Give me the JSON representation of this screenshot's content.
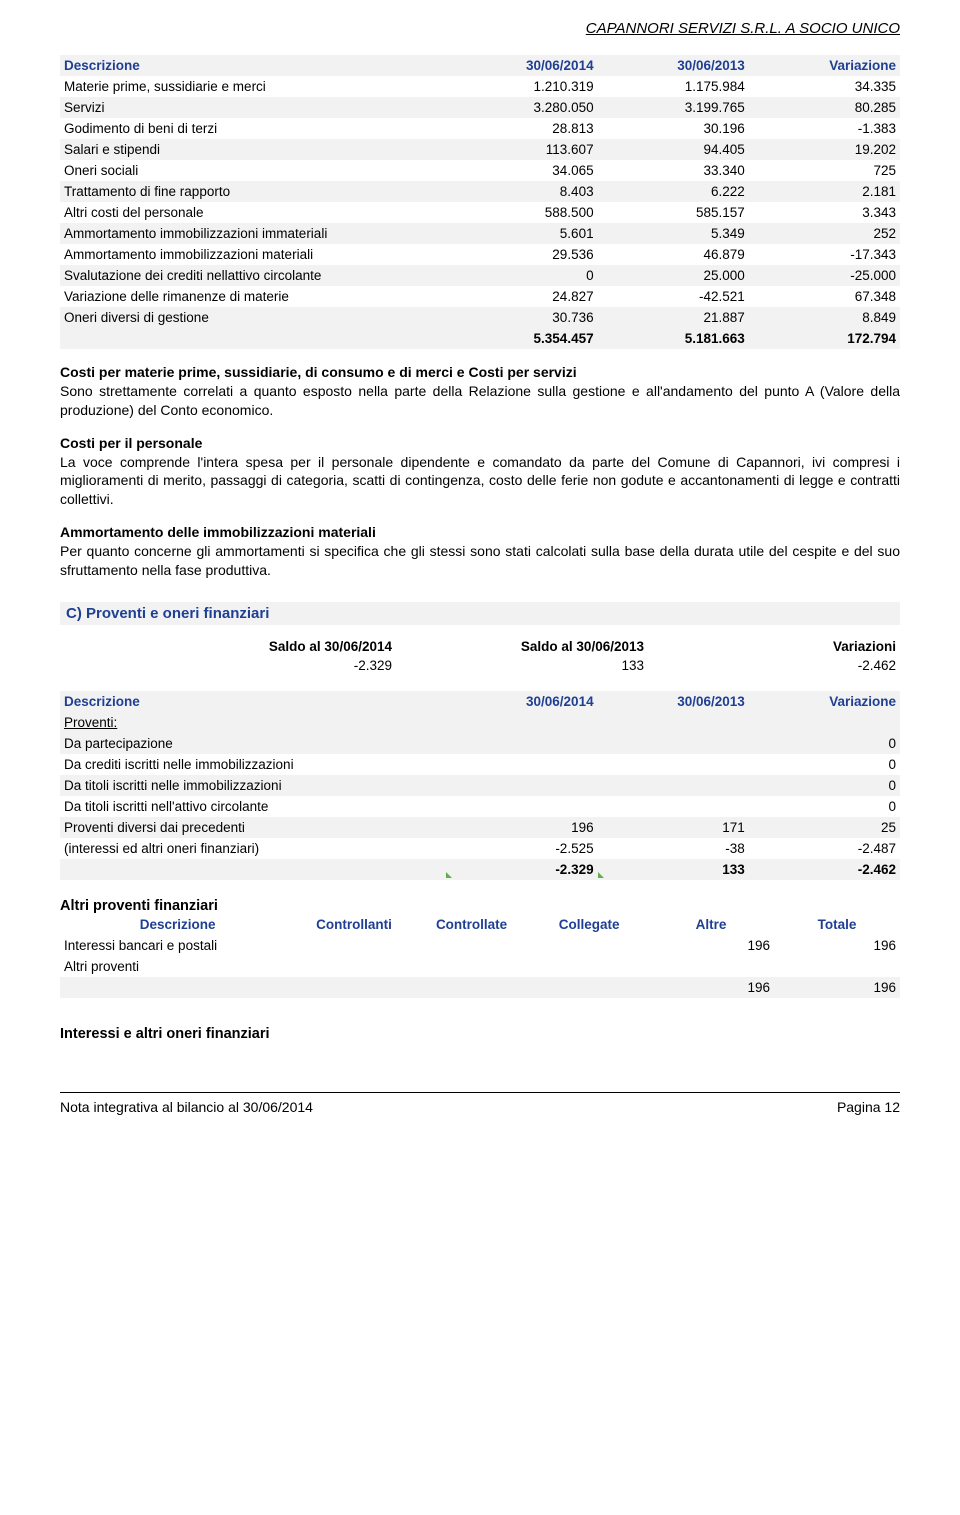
{
  "header": {
    "company": "CAPANNORI SERVIZI S.R.L. A SOCIO UNICO"
  },
  "t1": {
    "head": [
      "Descrizione",
      "30/06/2014",
      "30/06/2013",
      "Variazione"
    ],
    "rows": [
      [
        "Materie prime, sussidiarie e merci",
        "1.210.319",
        "1.175.984",
        "34.335"
      ],
      [
        "Servizi",
        "3.280.050",
        "3.199.765",
        "80.285"
      ],
      [
        "Godimento di beni di terzi",
        "28.813",
        "30.196",
        "-1.383"
      ],
      [
        "Salari e stipendi",
        "113.607",
        "94.405",
        "19.202"
      ],
      [
        "Oneri sociali",
        "34.065",
        "33.340",
        "725"
      ],
      [
        "Trattamento di fine rapporto",
        "8.403",
        "6.222",
        "2.181"
      ],
      [
        "Altri costi del personale",
        "588.500",
        "585.157",
        "3.343"
      ],
      [
        "Ammortamento immobilizzazioni immateriali",
        "5.601",
        "5.349",
        "252"
      ],
      [
        "Ammortamento immobilizzazioni materiali",
        "29.536",
        "46.879",
        "-17.343"
      ],
      [
        "Svalutazione dei crediti nellattivo circolante",
        "0",
        "25.000",
        "-25.000"
      ],
      [
        "Variazione delle rimanenze di materie",
        "24.827",
        "-42.521",
        "67.348"
      ],
      [
        "Oneri diversi di gestione",
        "30.736",
        "21.887",
        "8.849"
      ]
    ],
    "total": [
      "",
      "5.354.457",
      "5.181.663",
      "172.794"
    ]
  },
  "p1": {
    "title": "Costi per materie prime, sussidiarie, di consumo e di merci e Costi per servizi",
    "body": "Sono strettamente correlati a quanto esposto nella parte della Relazione sulla gestione e all'andamento del punto A (Valore della produzione) del Conto economico."
  },
  "p2": {
    "title": "Costi per il personale",
    "body": "La voce comprende l'intera spesa per il personale dipendente e comandato da parte del Comune di Capannori, ivi compresi i miglioramenti di merito, passaggi di categoria, scatti di contingenza, costo delle ferie non godute e accantonamenti di legge e contratti collettivi."
  },
  "p3": {
    "title": "Ammortamento delle immobilizzazioni materiali",
    "body": "Per quanto concerne gli ammortamenti si specifica che gli stessi sono stati calcolati sulla base della durata utile del cespite e del suo sfruttamento nella fase produttiva."
  },
  "sectionC": "C) Proventi e oneri finanziari",
  "t2": {
    "head": [
      "Saldo al 30/06/2014",
      "Saldo al 30/06/2013",
      "Variazioni"
    ],
    "row": [
      "-2.329",
      "133",
      "-2.462"
    ]
  },
  "t3": {
    "head": [
      "Descrizione",
      "30/06/2014",
      "30/06/2013",
      "Variazione"
    ],
    "subhead": "Proventi:",
    "rows": [
      [
        "Da partecipazione",
        "",
        "",
        "0"
      ],
      [
        "Da crediti iscritti nelle immobilizzazioni",
        "",
        "",
        "0"
      ],
      [
        "Da titoli iscritti nelle immobilizzazioni",
        "",
        "",
        "0"
      ],
      [
        "Da titoli iscritti nell'attivo circolante",
        "",
        "",
        "0"
      ],
      [
        "Proventi diversi dai precedenti",
        "196",
        "171",
        "25"
      ],
      [
        "(interessi ed altri oneri finanziari)",
        "-2.525",
        "-38",
        "-2.487"
      ]
    ],
    "total": [
      "",
      "-2.329",
      "133",
      "-2.462"
    ]
  },
  "t4": {
    "title": "Altri proventi finanziari",
    "head": [
      "Descrizione",
      "Controllanti",
      "Controllate",
      "Collegate",
      "Altre",
      "Totale"
    ],
    "rows": [
      [
        "Interessi bancari e postali",
        "",
        "",
        "",
        "196",
        "196"
      ],
      [
        "Altri proventi",
        "",
        "",
        "",
        "",
        ""
      ]
    ],
    "total": [
      "",
      "",
      "",
      "",
      "196",
      "196"
    ]
  },
  "h5": "Interessi e altri oneri finanziari",
  "footer": {
    "left": "Nota integrativa al bilancio al 30/06/2014",
    "right": "Pagina 12"
  }
}
